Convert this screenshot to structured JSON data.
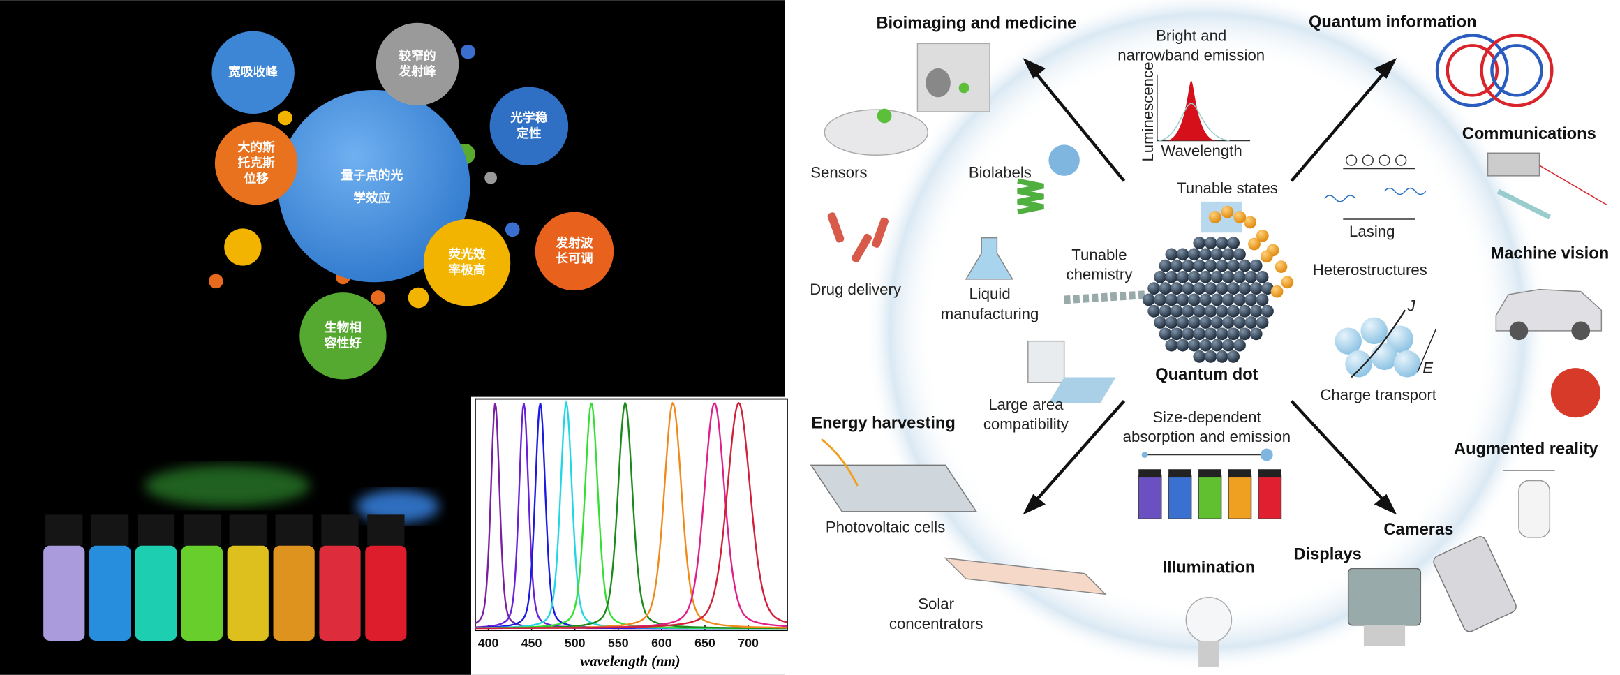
{
  "bubble_diagram": {
    "center": [
      "量子点的光",
      "学效应"
    ],
    "bubbles": [
      [
        "宽吸收峰"
      ],
      [
        "较窄的",
        "发射峰"
      ],
      [
        "光学稳",
        "定性"
      ],
      [
        "大的斯",
        "托克斯",
        "位移"
      ],
      [
        "发射波",
        "长可调"
      ],
      [
        "荧光效",
        "率极高"
      ],
      [
        "生物相",
        "容性好"
      ]
    ]
  },
  "chart_data": {
    "type": "line",
    "x_label": "wavelength (nm)",
    "xlim": [
      385,
      745
    ],
    "xticks": [
      400,
      450,
      500,
      550,
      600,
      650,
      700
    ],
    "series": [
      {
        "color": "#7b1fa2",
        "peak": 408,
        "fwhm": 12
      },
      {
        "color": "#6a20d8",
        "peak": 441,
        "fwhm": 13
      },
      {
        "color": "#1a1ae0",
        "peak": 460,
        "fwhm": 14
      },
      {
        "color": "#22d6e6",
        "peak": 490,
        "fwhm": 16
      },
      {
        "color": "#33e033",
        "peak": 519,
        "fwhm": 18
      },
      {
        "color": "#1a8a1a",
        "peak": 558,
        "fwhm": 20
      },
      {
        "color": "#f08a1a",
        "peak": 613,
        "fwhm": 24
      },
      {
        "color": "#e0208a",
        "peak": 661,
        "fwhm": 28
      },
      {
        "color": "#d0203a",
        "peak": 689,
        "fwhm": 32
      }
    ]
  },
  "diagram": {
    "labels": [
      {
        "text": [
          "Bioimaging and medicine"
        ]
      },
      {
        "text": [
          "Quantum  information"
        ]
      },
      {
        "text": [
          "Communications"
        ]
      },
      {
        "text": [
          "Machine vision"
        ]
      },
      {
        "text": [
          "Augmented reality"
        ]
      },
      {
        "text": [
          "Cameras"
        ]
      },
      {
        "text": [
          "Displays"
        ]
      },
      {
        "text": [
          "Illumination"
        ]
      },
      {
        "text": [
          "Energy harvesting"
        ]
      },
      {
        "text": [
          "Quantum dot"
        ]
      },
      {
        "text": [
          "Bright and",
          "narrowband emission"
        ]
      },
      {
        "text": [
          "Luminescence"
        ]
      },
      {
        "text": [
          "Wavelength"
        ]
      },
      {
        "text": [
          "Tunable states"
        ]
      },
      {
        "text": [
          "Heterostructures"
        ]
      },
      {
        "text": [
          "Tunable",
          "chemistry"
        ]
      },
      {
        "text": [
          "Lasing"
        ]
      },
      {
        "text": [
          "Charge transport"
        ]
      },
      {
        "text": [
          "J"
        ]
      },
      {
        "text": [
          "E"
        ]
      },
      {
        "text": [
          "Size-dependent",
          "absorption and emission"
        ]
      },
      {
        "text": [
          "Large area",
          "compatibility"
        ]
      },
      {
        "text": [
          "Liquid",
          "manufacturing"
        ]
      },
      {
        "text": [
          "Biolabels"
        ]
      },
      {
        "text": [
          "Sensors"
        ]
      },
      {
        "text": [
          "Drug delivery"
        ]
      },
      {
        "text": [
          "Photovoltaic cells"
        ]
      },
      {
        "text": [
          "Solar",
          "concentrators"
        ]
      }
    ]
  }
}
